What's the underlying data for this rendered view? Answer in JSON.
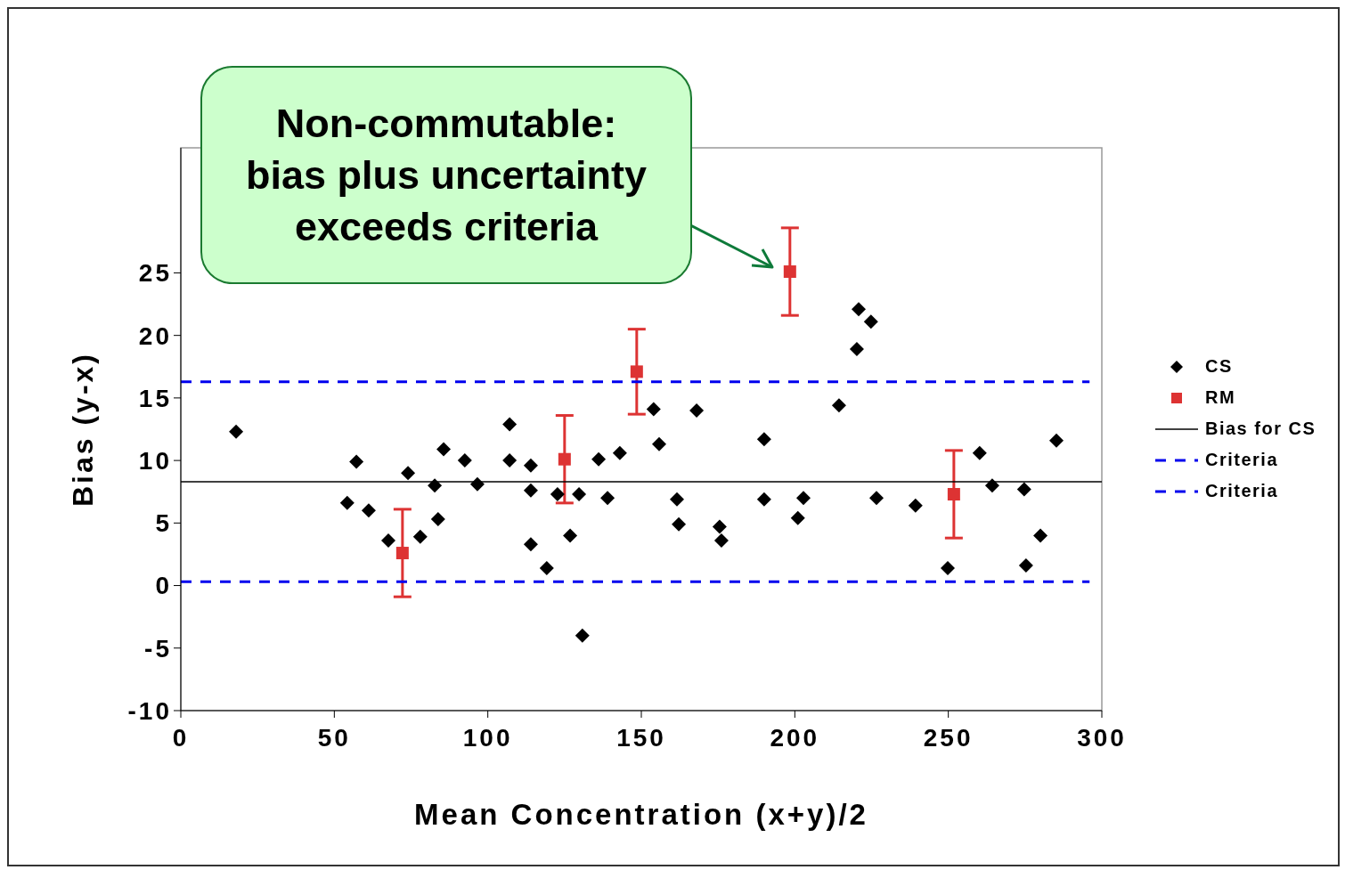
{
  "chart_data": {
    "type": "scatter",
    "xlabel": "Mean Concentration (x+y)/2",
    "ylabel": "Bias (y-x)",
    "xlim": [
      0,
      300
    ],
    "xticks": [
      0,
      50,
      100,
      150,
      200,
      250,
      300
    ],
    "ylim": [
      -10,
      35
    ],
    "yticks": [
      -10,
      -5,
      0,
      5,
      10,
      15,
      20,
      25
    ],
    "legend": "right",
    "annotations": [
      "Non-commutable: bias plus uncertainty exceeds criteria"
    ],
    "series": [
      {
        "name": "CS",
        "marker": "diamond",
        "color": "#000000",
        "x": [
          18,
          54.2,
          57.2,
          61.2,
          67.6,
          74,
          78,
          82.7,
          83.8,
          85.6,
          92.5,
          96.6,
          107.1,
          107.1,
          114,
          114,
          114,
          119.2,
          122.7,
          126.8,
          129.7,
          130.8,
          136.1,
          139,
          143,
          154,
          155.8,
          161.6,
          162.2,
          168,
          175.5,
          176.1,
          190,
          190,
          201,
          202.8,
          214.4,
          220.2,
          220.8,
          224.8,
          226.6,
          239.3,
          249.8,
          260.2,
          264.3,
          274.7,
          275.3,
          280,
          285.2
        ],
        "values": [
          12.3,
          6.6,
          9.9,
          6,
          3.6,
          9,
          3.9,
          8,
          5.3,
          10.9,
          10,
          8.1,
          12.9,
          10,
          9.6,
          7.6,
          3.3,
          1.4,
          7.3,
          4,
          7.3,
          -4,
          10.1,
          7,
          10.6,
          14.1,
          11.3,
          6.9,
          4.9,
          14,
          4.7,
          3.6,
          11.7,
          6.9,
          5.4,
          7,
          14.4,
          18.9,
          22.1,
          21.1,
          7,
          6.4,
          1.4,
          10.6,
          8,
          7.7,
          1.6,
          4,
          11.6
        ]
      },
      {
        "name": "RM",
        "marker": "square",
        "color": "#dd3333",
        "x": [
          72.2,
          125,
          148.5,
          198.4,
          251.8
        ],
        "values": [
          2.6,
          10.1,
          17.1,
          25.1,
          7.3
        ],
        "errors": [
          3.5,
          3.5,
          3.4,
          3.5,
          3.5
        ]
      },
      {
        "name": "Bias for CS",
        "type": "line",
        "marker": "none",
        "line_style": "solid",
        "color": "#000000",
        "x": [
          0,
          300
        ],
        "values": [
          8.3,
          8.3
        ]
      },
      {
        "name": "Criteria",
        "type": "line",
        "marker": "none",
        "line_style": "dashed",
        "color": "#0000ee",
        "x": [
          0,
          296
        ],
        "values": [
          16.3,
          16.3
        ]
      },
      {
        "name": "Criteria",
        "type": "line",
        "marker": "none",
        "line_style": "dashed",
        "color": "#0000ee",
        "x": [
          0,
          296
        ],
        "values": [
          0.3,
          0.3
        ]
      }
    ]
  }
}
